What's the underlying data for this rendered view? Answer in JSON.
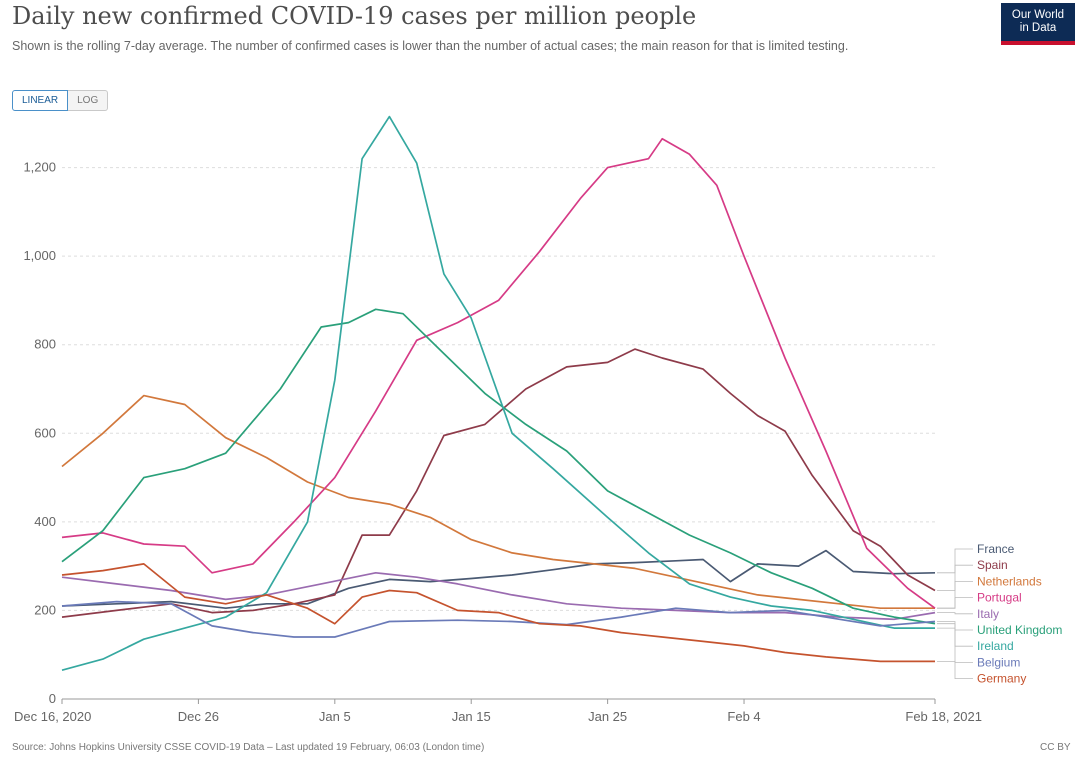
{
  "title": "Daily new confirmed COVID-19 cases per million people",
  "subtitle": "Shown is the rolling 7-day average. The number of confirmed cases is lower than the number of actual cases; the main reason for that is limited testing.",
  "logo": {
    "line1": "Our World",
    "line2": "in Data"
  },
  "scale_toggle": {
    "linear": "LINEAR",
    "log": "LOG",
    "selected": "linear"
  },
  "footer": {
    "source": "Source: Johns Hopkins University CSSE COVID-19 Data – Last updated 19 February, 06:03 (London time)",
    "license": "CC BY"
  },
  "chart_data": {
    "type": "line",
    "title": "Daily new confirmed COVID-19 cases per million people",
    "x_range": [
      "2020-12-16",
      "2021-02-18"
    ],
    "xticks": [
      {
        "date": "2020-12-16",
        "label": "Dec 16, 2020"
      },
      {
        "date": "2020-12-26",
        "label": "Dec 26"
      },
      {
        "date": "2021-01-05",
        "label": "Jan 5"
      },
      {
        "date": "2021-01-15",
        "label": "Jan 15"
      },
      {
        "date": "2021-01-25",
        "label": "Jan 25"
      },
      {
        "date": "2021-02-04",
        "label": "Feb 4"
      },
      {
        "date": "2021-02-18",
        "label": "Feb 18, 2021"
      }
    ],
    "ylim": [
      0,
      1330
    ],
    "yticks": [
      0,
      200,
      400,
      600,
      800,
      1000,
      1200
    ],
    "ytick_labels": [
      "0",
      "200",
      "400",
      "600",
      "800",
      "1,000",
      "1,200"
    ],
    "grid": "horizontal-dashed",
    "legend": "right-end-labels",
    "series": [
      {
        "name": "France",
        "color": "#4a5a73",
        "points": [
          [
            "2020-12-16",
            210
          ],
          [
            "2020-12-20",
            215
          ],
          [
            "2020-12-24",
            220
          ],
          [
            "2020-12-28",
            205
          ],
          [
            "2020-12-31",
            215
          ],
          [
            "2021-01-03",
            215
          ],
          [
            "2021-01-06",
            250
          ],
          [
            "2021-01-09",
            270
          ],
          [
            "2021-01-12",
            265
          ],
          [
            "2021-01-15",
            272
          ],
          [
            "2021-01-18",
            280
          ],
          [
            "2021-01-21",
            292
          ],
          [
            "2021-01-24",
            305
          ],
          [
            "2021-01-27",
            308
          ],
          [
            "2021-01-30",
            312
          ],
          [
            "2021-02-01",
            315
          ],
          [
            "2021-02-03",
            265
          ],
          [
            "2021-02-05",
            305
          ],
          [
            "2021-02-08",
            300
          ],
          [
            "2021-02-10",
            335
          ],
          [
            "2021-02-12",
            288
          ],
          [
            "2021-02-15",
            283
          ],
          [
            "2021-02-18",
            285
          ]
        ]
      },
      {
        "name": "Spain",
        "color": "#8e3b4a",
        "points": [
          [
            "2020-12-16",
            185
          ],
          [
            "2020-12-20",
            200
          ],
          [
            "2020-12-24",
            215
          ],
          [
            "2020-12-27",
            195
          ],
          [
            "2020-12-30",
            200
          ],
          [
            "2021-01-02",
            215
          ],
          [
            "2021-01-05",
            235
          ],
          [
            "2021-01-07",
            370
          ],
          [
            "2021-01-09",
            370
          ],
          [
            "2021-01-11",
            470
          ],
          [
            "2021-01-13",
            595
          ],
          [
            "2021-01-16",
            620
          ],
          [
            "2021-01-19",
            700
          ],
          [
            "2021-01-22",
            750
          ],
          [
            "2021-01-25",
            760
          ],
          [
            "2021-01-27",
            790
          ],
          [
            "2021-01-29",
            770
          ],
          [
            "2021-02-01",
            745
          ],
          [
            "2021-02-03",
            690
          ],
          [
            "2021-02-05",
            640
          ],
          [
            "2021-02-07",
            605
          ],
          [
            "2021-02-09",
            505
          ],
          [
            "2021-02-12",
            380
          ],
          [
            "2021-02-14",
            345
          ],
          [
            "2021-02-16",
            280
          ],
          [
            "2021-02-18",
            245
          ]
        ]
      },
      {
        "name": "Netherlands",
        "color": "#d2783c",
        "points": [
          [
            "2020-12-16",
            525
          ],
          [
            "2020-12-19",
            600
          ],
          [
            "2020-12-22",
            685
          ],
          [
            "2020-12-25",
            665
          ],
          [
            "2020-12-28",
            590
          ],
          [
            "2020-12-31",
            545
          ],
          [
            "2021-01-03",
            490
          ],
          [
            "2021-01-06",
            455
          ],
          [
            "2021-01-09",
            440
          ],
          [
            "2021-01-12",
            410
          ],
          [
            "2021-01-15",
            360
          ],
          [
            "2021-01-18",
            330
          ],
          [
            "2021-01-21",
            315
          ],
          [
            "2021-01-24",
            305
          ],
          [
            "2021-01-27",
            295
          ],
          [
            "2021-01-30",
            275
          ],
          [
            "2021-02-02",
            255
          ],
          [
            "2021-02-05",
            235
          ],
          [
            "2021-02-08",
            225
          ],
          [
            "2021-02-11",
            215
          ],
          [
            "2021-02-14",
            205
          ],
          [
            "2021-02-18",
            205
          ]
        ]
      },
      {
        "name": "Portugal",
        "color": "#d63b86",
        "points": [
          [
            "2020-12-16",
            365
          ],
          [
            "2020-12-19",
            375
          ],
          [
            "2020-12-22",
            350
          ],
          [
            "2020-12-25",
            345
          ],
          [
            "2020-12-27",
            285
          ],
          [
            "2020-12-30",
            305
          ],
          [
            "2021-01-02",
            400
          ],
          [
            "2021-01-05",
            500
          ],
          [
            "2021-01-08",
            650
          ],
          [
            "2021-01-11",
            810
          ],
          [
            "2021-01-14",
            850
          ],
          [
            "2021-01-17",
            900
          ],
          [
            "2021-01-20",
            1010
          ],
          [
            "2021-01-23",
            1130
          ],
          [
            "2021-01-25",
            1200
          ],
          [
            "2021-01-28",
            1220
          ],
          [
            "2021-01-29",
            1265
          ],
          [
            "2021-01-31",
            1230
          ],
          [
            "2021-02-02",
            1160
          ],
          [
            "2021-02-04",
            1000
          ],
          [
            "2021-02-07",
            770
          ],
          [
            "2021-02-10",
            560
          ],
          [
            "2021-02-13",
            340
          ],
          [
            "2021-02-16",
            250
          ],
          [
            "2021-02-18",
            205
          ]
        ]
      },
      {
        "name": "Italy",
        "color": "#9a6bb0",
        "points": [
          [
            "2020-12-16",
            275
          ],
          [
            "2020-12-20",
            260
          ],
          [
            "2020-12-24",
            245
          ],
          [
            "2020-12-28",
            225
          ],
          [
            "2020-12-31",
            235
          ],
          [
            "2021-01-04",
            260
          ],
          [
            "2021-01-08",
            285
          ],
          [
            "2021-01-11",
            275
          ],
          [
            "2021-01-14",
            260
          ],
          [
            "2021-01-18",
            235
          ],
          [
            "2021-01-22",
            215
          ],
          [
            "2021-01-26",
            205
          ],
          [
            "2021-01-30",
            200
          ],
          [
            "2021-02-03",
            195
          ],
          [
            "2021-02-07",
            195
          ],
          [
            "2021-02-11",
            185
          ],
          [
            "2021-02-15",
            180
          ],
          [
            "2021-02-18",
            195
          ]
        ]
      },
      {
        "name": "United Kingdom",
        "color": "#2aa07a",
        "points": [
          [
            "2020-12-16",
            310
          ],
          [
            "2020-12-19",
            380
          ],
          [
            "2020-12-22",
            500
          ],
          [
            "2020-12-25",
            520
          ],
          [
            "2020-12-28",
            555
          ],
          [
            "2021-01-01",
            700
          ],
          [
            "2021-01-04",
            840
          ],
          [
            "2021-01-06",
            850
          ],
          [
            "2021-01-08",
            880
          ],
          [
            "2021-01-10",
            870
          ],
          [
            "2021-01-13",
            780
          ],
          [
            "2021-01-16",
            690
          ],
          [
            "2021-01-19",
            620
          ],
          [
            "2021-01-22",
            560
          ],
          [
            "2021-01-25",
            470
          ],
          [
            "2021-01-28",
            420
          ],
          [
            "2021-01-31",
            370
          ],
          [
            "2021-02-03",
            330
          ],
          [
            "2021-02-06",
            285
          ],
          [
            "2021-02-09",
            250
          ],
          [
            "2021-02-12",
            205
          ],
          [
            "2021-02-15",
            185
          ],
          [
            "2021-02-18",
            170
          ]
        ]
      },
      {
        "name": "Ireland",
        "color": "#35a8a0",
        "points": [
          [
            "2020-12-16",
            65
          ],
          [
            "2020-12-19",
            90
          ],
          [
            "2020-12-22",
            135
          ],
          [
            "2020-12-25",
            160
          ],
          [
            "2020-12-28",
            185
          ],
          [
            "2020-12-31",
            240
          ],
          [
            "2021-01-03",
            400
          ],
          [
            "2021-01-05",
            720
          ],
          [
            "2021-01-07",
            1220
          ],
          [
            "2021-01-09",
            1315
          ],
          [
            "2021-01-11",
            1210
          ],
          [
            "2021-01-13",
            960
          ],
          [
            "2021-01-15",
            860
          ],
          [
            "2021-01-18",
            600
          ],
          [
            "2021-01-21",
            520
          ],
          [
            "2021-01-25",
            410
          ],
          [
            "2021-01-28",
            330
          ],
          [
            "2021-01-31",
            260
          ],
          [
            "2021-02-03",
            230
          ],
          [
            "2021-02-06",
            210
          ],
          [
            "2021-02-09",
            200
          ],
          [
            "2021-02-12",
            180
          ],
          [
            "2021-02-15",
            160
          ],
          [
            "2021-02-18",
            160
          ]
        ]
      },
      {
        "name": "Belgium",
        "color": "#6a7ab8",
        "points": [
          [
            "2020-12-16",
            210
          ],
          [
            "2020-12-20",
            220
          ],
          [
            "2020-12-24",
            215
          ],
          [
            "2020-12-27",
            165
          ],
          [
            "2020-12-30",
            150
          ],
          [
            "2021-01-02",
            140
          ],
          [
            "2021-01-05",
            140
          ],
          [
            "2021-01-09",
            175
          ],
          [
            "2021-01-14",
            178
          ],
          [
            "2021-01-18",
            175
          ],
          [
            "2021-01-22",
            168
          ],
          [
            "2021-01-26",
            185
          ],
          [
            "2021-01-30",
            205
          ],
          [
            "2021-02-03",
            195
          ],
          [
            "2021-02-07",
            200
          ],
          [
            "2021-02-11",
            180
          ],
          [
            "2021-02-14",
            165
          ],
          [
            "2021-02-18",
            175
          ]
        ]
      },
      {
        "name": "Germany",
        "color": "#c5532e",
        "points": [
          [
            "2020-12-16",
            280
          ],
          [
            "2020-12-19",
            290
          ],
          [
            "2020-12-22",
            305
          ],
          [
            "2020-12-25",
            230
          ],
          [
            "2020-12-28",
            215
          ],
          [
            "2020-12-31",
            235
          ],
          [
            "2021-01-03",
            205
          ],
          [
            "2021-01-05",
            170
          ],
          [
            "2021-01-07",
            230
          ],
          [
            "2021-01-09",
            245
          ],
          [
            "2021-01-11",
            240
          ],
          [
            "2021-01-14",
            200
          ],
          [
            "2021-01-17",
            195
          ],
          [
            "2021-01-20",
            170
          ],
          [
            "2021-01-23",
            165
          ],
          [
            "2021-01-26",
            150
          ],
          [
            "2021-01-29",
            140
          ],
          [
            "2021-02-01",
            130
          ],
          [
            "2021-02-04",
            120
          ],
          [
            "2021-02-07",
            105
          ],
          [
            "2021-02-10",
            95
          ],
          [
            "2021-02-14",
            85
          ],
          [
            "2021-02-18",
            85
          ]
        ]
      }
    ]
  }
}
